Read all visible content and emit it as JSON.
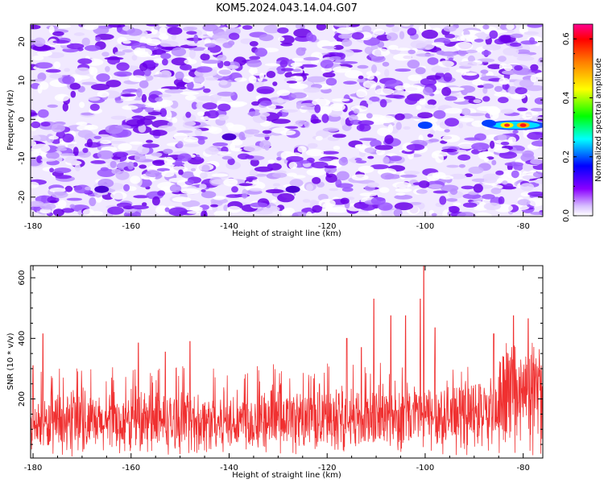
{
  "title": "KOM5.2024.043.14.04.G07",
  "chart_data": [
    {
      "type": "heatmap",
      "xlabel": "Height of straight line (km)",
      "ylabel": "Frequency (Hz)",
      "xlim": [
        -180.5,
        -76
      ],
      "ylim": [
        -25,
        24.5
      ],
      "x_ticks": [
        -180,
        -160,
        -140,
        -120,
        -100,
        -80
      ],
      "y_ticks": [
        -20,
        -10,
        0,
        10,
        20
      ],
      "colorbar": {
        "label": "Normalized spectral amplitude",
        "range": [
          0,
          0.65
        ],
        "ticks": [
          0.0,
          0.2,
          0.4,
          0.6
        ],
        "colormap": [
          "#ffffff",
          "#c8a0ff",
          "#7a00ff",
          "#0000ff",
          "#00ffff",
          "#00ff00",
          "#ffff00",
          "#ff8000",
          "#ff0000",
          "#ff0080"
        ]
      },
      "features": [
        {
          "x": -81,
          "y": -1.5,
          "amplitude": 0.62
        },
        {
          "x": -87,
          "y": -1,
          "amplitude": 0.25
        },
        {
          "x": -100,
          "y": -1.5,
          "amplitude": 0.22
        },
        {
          "x": -140,
          "y": -4.5,
          "amplitude": 0.18
        },
        {
          "x": -166,
          "y": -18,
          "amplitude": 0.16
        },
        {
          "x": -127,
          "y": -18,
          "amplitude": 0.12
        }
      ]
    },
    {
      "type": "line",
      "xlabel": "Height of straight line (km)",
      "ylabel": "SNR (10 * v/v)",
      "xlim": [
        -180.5,
        -76
      ],
      "ylim": [
        5,
        640
      ],
      "x_ticks": [
        -180,
        -160,
        -140,
        -120,
        -100,
        -80
      ],
      "y_ticks": [
        200,
        400,
        600
      ],
      "color": "#f03030",
      "peaks": [
        {
          "x": -180,
          "y": 310
        },
        {
          "x": -178,
          "y": 415
        },
        {
          "x": -158.5,
          "y": 385
        },
        {
          "x": -153,
          "y": 355
        },
        {
          "x": -148,
          "y": 390
        },
        {
          "x": -116,
          "y": 400
        },
        {
          "x": -113,
          "y": 370
        },
        {
          "x": -110.5,
          "y": 530
        },
        {
          "x": -107,
          "y": 475
        },
        {
          "x": -104,
          "y": 475
        },
        {
          "x": -101,
          "y": 530
        },
        {
          "x": -100.3,
          "y": 640
        },
        {
          "x": -98,
          "y": 435
        },
        {
          "x": -86,
          "y": 415
        },
        {
          "x": -82,
          "y": 475
        },
        {
          "x": -79,
          "y": 465
        }
      ]
    }
  ]
}
